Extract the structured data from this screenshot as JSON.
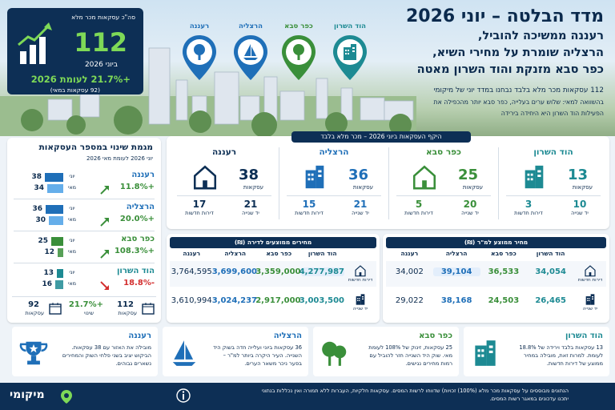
{
  "colors": {
    "navy": "#0d2f55",
    "green": "#7ed957",
    "blue": "#1f6fb8",
    "teal": "#1d8a93",
    "dkgreen": "#3a8f3a",
    "red": "#d32f2f"
  },
  "header": {
    "title": "מדד הבלטה – יוני 2026",
    "sub1": "רעננה ממשיכה להוביל,",
    "sub2": "הרצליה שומרת על מחירי השיא,",
    "sub3": "כפר סבא מזנקת והוד השרון מאטה",
    "lead": "112 עסקאות מכר מלא בלבד נבחנו במדד יוני של מיקומי",
    "note1": "בהשוואה למאי: שלוש ערים בעלייה, כפר סבא יותר מהכפילה את",
    "note2": "הפעילות הוד השרון היא היחידה בירידה"
  },
  "kpi": {
    "label": "סה\"כ עסקאות מכר מלא",
    "value": "112",
    "period": "ביוני 2026",
    "change": "+21.7% לעומת 2026",
    "base": "(92 עסקאות במאי)"
  },
  "pins": [
    {
      "name": "רעננה",
      "icon": "tree-icon",
      "color": "#1f6fb8"
    },
    {
      "name": "הרצליה",
      "icon": "sailboat-icon",
      "color": "#1f6fb8"
    },
    {
      "name": "כפר סבא",
      "icon": "tree-icon",
      "color": "#3a8f3a"
    },
    {
      "name": "הוד השרון",
      "icon": "building-icon",
      "color": "#1d8a93"
    }
  ],
  "volume": {
    "title": "היקף העסקאות ביוני 2026 – מכר מלא בלבד",
    "unit": "עסקאות",
    "second_hand": "יד שנייה",
    "new_apts": "דירות חדשות",
    "cities": [
      {
        "name": "הוד השרון",
        "total": "13",
        "second": "10",
        "new": "3",
        "color": "#1d8a93"
      },
      {
        "name": "כפר סבא",
        "total": "25",
        "second": "20",
        "new": "5",
        "color": "#3a8f3a"
      },
      {
        "name": "הרצליה",
        "total": "36",
        "second": "21",
        "new": "15",
        "color": "#1f6fb8"
      },
      {
        "name": "רעננה",
        "total": "38",
        "second": "21",
        "new": "17",
        "color": "#0d2f55"
      }
    ]
  },
  "sqm": {
    "title": "מחיר ממוצע למ\"ר (₪)",
    "cities": [
      "הוד השרון",
      "כפר סבא",
      "הרצליה",
      "רעננה"
    ],
    "row1_label": "דירות חדשות",
    "row2_label": "יד שנייה",
    "row1": [
      "34,054",
      "36,533",
      "39,104",
      "34,002"
    ],
    "row2": [
      "26,465",
      "24,503",
      "38,168",
      "29,022"
    ]
  },
  "apt": {
    "title": "מחירים ממוצעים לדירה (₪)",
    "cities": [
      "הוד השרון",
      "כפר סבא",
      "הרצליה",
      "רעננה"
    ],
    "row1_label": "דירות חדשות",
    "row2_label": "יד שנייה",
    "row1": [
      "4,277,987",
      "3,359,000",
      "3,699,600",
      "3,764,595"
    ],
    "row2": [
      "3,003,500",
      "2,917,000",
      "3,024,237",
      "3,610,994"
    ]
  },
  "change": {
    "title": "מגמת שינוי במספר העסקאות",
    "sub": "יוני 2026 לעומת מאי 2026",
    "june": "יוני",
    "may": "מאי",
    "rows": [
      {
        "city": "רעננה",
        "pct": "+11.8%",
        "june": "38",
        "may": "34",
        "up": true,
        "color": "#1f6fb8"
      },
      {
        "city": "הרצליה",
        "pct": "+20.0%",
        "june": "36",
        "may": "30",
        "up": true,
        "color": "#1f6fb8"
      },
      {
        "city": "כפר סבא",
        "pct": "+108.3%",
        "june": "25",
        "may": "12",
        "up": true,
        "color": "#3a8f3a"
      },
      {
        "city": "הוד השרון",
        "pct": "-18.8%",
        "june": "13",
        "may": "16",
        "up": false,
        "color": "#1d8a93"
      }
    ],
    "tot_june": "112",
    "tot_may": "92",
    "tot_pct": "+21.7%",
    "tot_change_label": "שינוי",
    "deals": "עסקאות"
  },
  "bottom": [
    {
      "city": "הוד השרון",
      "text": "13 עסקאות בלבד וירידה של 18.8% לעומת. למרות זאת, מובילה במחיר ממוצע של דירות חדשות.",
      "icon": "building-icon"
    },
    {
      "city": "כפר סבא",
      "text": "25 עסקאות, זינוק של 108% לעומת מאי. שוק היד השנייה חזר להוביל עם רמות מחירים נגישים.",
      "icon": "trees-icon"
    },
    {
      "city": "הרצליה",
      "text": "36 עסקאות ביוני ועלייה חדה בשוק היד השנייה. העיר היקרה ביותר למ\"ר – בפער ניכר משאר הערים.",
      "icon": "sailboat-icon"
    },
    {
      "city": "רעננה",
      "text": "מובילה את האזור עם 38 עסקאות. הביקוש יציב בשני פלחי השוק והמחירים נשארים גבוהים.",
      "icon": "trophy-icon"
    }
  ],
  "footer": {
    "line1": "הנתונים מבוססים על עסקאות מכר מלא (100%) זכויות) שדווחו לרשות המסים. עסקאות חלקיות, העברות ללא תמורה ואין נכללות בנתוני",
    "line2": "יתכנו עדכונים במאגר רשות המסים.",
    "brand": "מיקומי"
  }
}
